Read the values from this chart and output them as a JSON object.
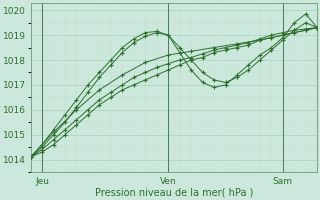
{
  "xlabel": "Pression niveau de la mer( hPa )",
  "ylim": [
    1013.5,
    1020.3
  ],
  "xlim": [
    0,
    50
  ],
  "yticks": [
    1014,
    1015,
    1016,
    1017,
    1018,
    1019,
    1020
  ],
  "xtick_positions": [
    2,
    24,
    44
  ],
  "xtick_labels": [
    "Jeu",
    "Ven",
    "Sam"
  ],
  "vline_positions": [
    2,
    24,
    44
  ],
  "bg_color": "#cce8dc",
  "grid_major_color": "#aacfbc",
  "grid_minor_color": "#bbdacc",
  "line_color": "#2d6e2d",
  "series": [
    {
      "x": [
        0,
        2,
        4,
        6,
        8,
        10,
        12,
        14,
        16,
        18,
        20,
        22,
        24,
        26,
        28,
        30,
        32,
        34,
        36,
        38,
        40,
        42,
        44,
        46,
        48,
        50
      ],
      "y": [
        1014.1,
        1014.3,
        1014.6,
        1015.0,
        1015.4,
        1015.8,
        1016.2,
        1016.5,
        1016.8,
        1017.0,
        1017.2,
        1017.4,
        1017.6,
        1017.8,
        1018.0,
        1018.1,
        1018.3,
        1018.4,
        1018.5,
        1018.6,
        1018.8,
        1018.9,
        1019.0,
        1019.1,
        1019.2,
        1019.3
      ]
    },
    {
      "x": [
        0,
        2,
        4,
        6,
        8,
        10,
        12,
        14,
        16,
        18,
        20,
        22,
        24,
        26,
        28,
        30,
        32,
        34,
        36,
        38,
        40,
        42,
        44,
        46,
        48,
        50
      ],
      "y": [
        1014.1,
        1014.5,
        1015.0,
        1015.5,
        1016.1,
        1016.7,
        1017.3,
        1017.8,
        1018.3,
        1018.7,
        1018.95,
        1019.1,
        1019.0,
        1018.5,
        1018.0,
        1017.5,
        1017.2,
        1017.1,
        1017.3,
        1017.6,
        1018.0,
        1018.4,
        1018.8,
        1019.2,
        1019.5,
        1019.3
      ]
    },
    {
      "x": [
        0,
        2,
        4,
        6,
        8,
        10,
        12,
        14,
        16,
        18,
        20,
        22,
        24,
        26,
        28,
        30,
        32,
        34,
        36,
        38,
        40,
        42,
        44,
        46,
        48,
        50
      ],
      "y": [
        1014.1,
        1014.6,
        1015.2,
        1015.8,
        1016.4,
        1017.0,
        1017.5,
        1018.0,
        1018.5,
        1018.85,
        1019.1,
        1019.15,
        1019.0,
        1018.3,
        1017.6,
        1017.1,
        1016.9,
        1017.0,
        1017.4,
        1017.8,
        1018.2,
        1018.5,
        1018.9,
        1019.5,
        1019.85,
        1019.3
      ]
    },
    {
      "x": [
        0,
        2,
        4,
        6,
        8,
        10,
        12,
        14,
        16,
        18,
        20,
        22,
        24,
        26,
        28,
        30,
        32,
        34,
        36,
        38,
        40,
        42,
        44,
        46,
        48,
        50
      ],
      "y": [
        1014.1,
        1014.4,
        1014.8,
        1015.2,
        1015.6,
        1016.0,
        1016.4,
        1016.7,
        1017.0,
        1017.3,
        1017.5,
        1017.7,
        1017.85,
        1018.0,
        1018.1,
        1018.25,
        1018.4,
        1018.5,
        1018.6,
        1018.7,
        1018.85,
        1019.0,
        1019.1,
        1019.2,
        1019.25,
        1019.3
      ]
    },
    {
      "x": [
        0,
        4,
        8,
        12,
        16,
        20,
        24,
        28,
        32,
        36,
        40,
        44,
        48,
        50
      ],
      "y": [
        1014.1,
        1015.1,
        1016.0,
        1016.8,
        1017.4,
        1017.9,
        1018.2,
        1018.35,
        1018.5,
        1018.65,
        1018.8,
        1019.0,
        1019.2,
        1019.3
      ]
    }
  ]
}
